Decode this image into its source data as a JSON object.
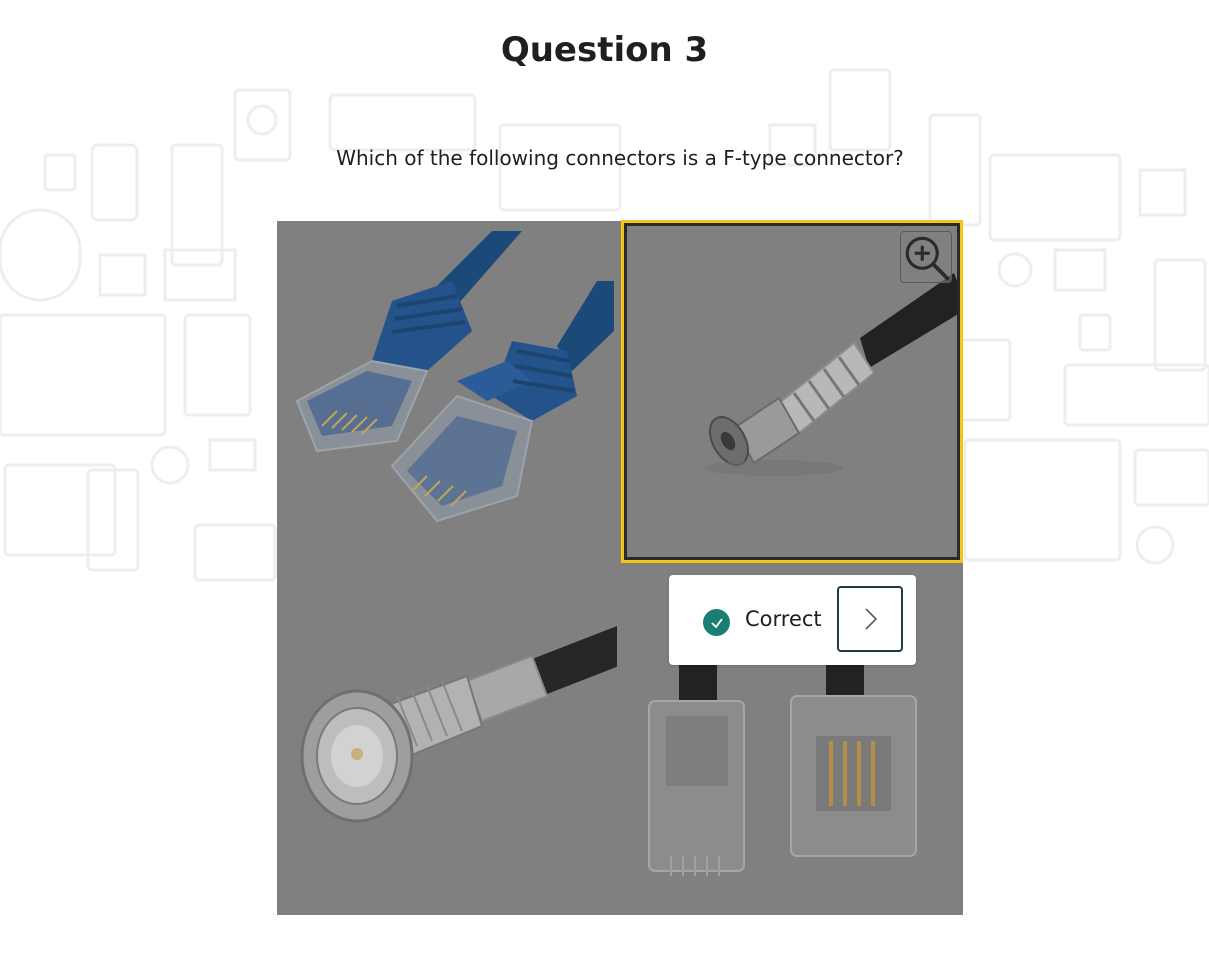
{
  "title": "Question 3",
  "question": "Which of the following connectors is a F-type connector?",
  "options": [
    {
      "image": "rj45-ethernet-connector-image",
      "selected": false
    },
    {
      "image": "f-type-coaxial-connector-image",
      "selected": true
    },
    {
      "image": "bnc-connector-image",
      "selected": false
    },
    {
      "image": "rj11-phone-connector-image",
      "selected": false
    }
  ],
  "zoom_icon": "zoom-in-icon",
  "feedback": {
    "icon": "checkmark-icon",
    "label": "Correct",
    "next_icon": "chevron-right-icon"
  },
  "colors": {
    "selection_border": "#f5c518",
    "correct_badge": "#1a7f72",
    "next_button_border": "#1e3a44",
    "overlay": "#808080"
  }
}
